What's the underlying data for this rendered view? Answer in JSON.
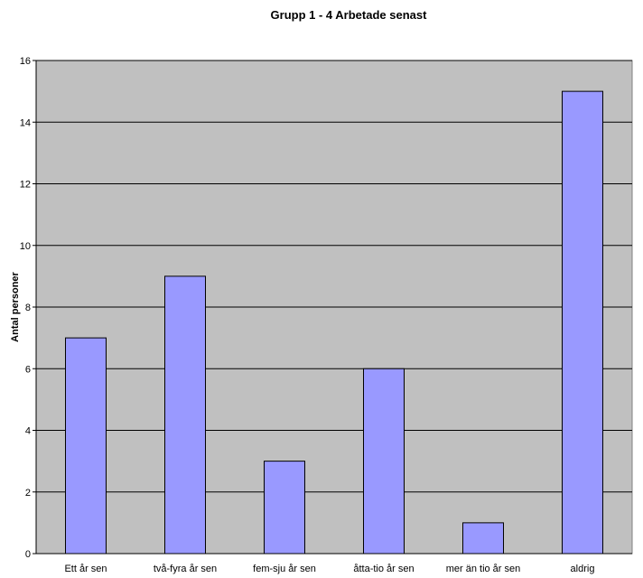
{
  "chart_data": {
    "type": "bar",
    "title": "Grupp 1 - 4 Arbetade senast",
    "xlabel": "",
    "ylabel": "Antal personer",
    "categories": [
      "Ett år sen",
      "två-fyra år sen",
      "fem-sju år sen",
      "åtta-tio år sen",
      "mer än tio år sen",
      "aldrig"
    ],
    "values": [
      7,
      9,
      3,
      6,
      1,
      15
    ],
    "ylim": [
      0,
      16
    ],
    "yticks": [
      0,
      2,
      4,
      6,
      8,
      10,
      12,
      14,
      16
    ],
    "grid": true,
    "legend": "none",
    "colors": {
      "bar": "#9999ff",
      "plot_bg": "#c0c0c0",
      "grid": "#000000"
    }
  }
}
